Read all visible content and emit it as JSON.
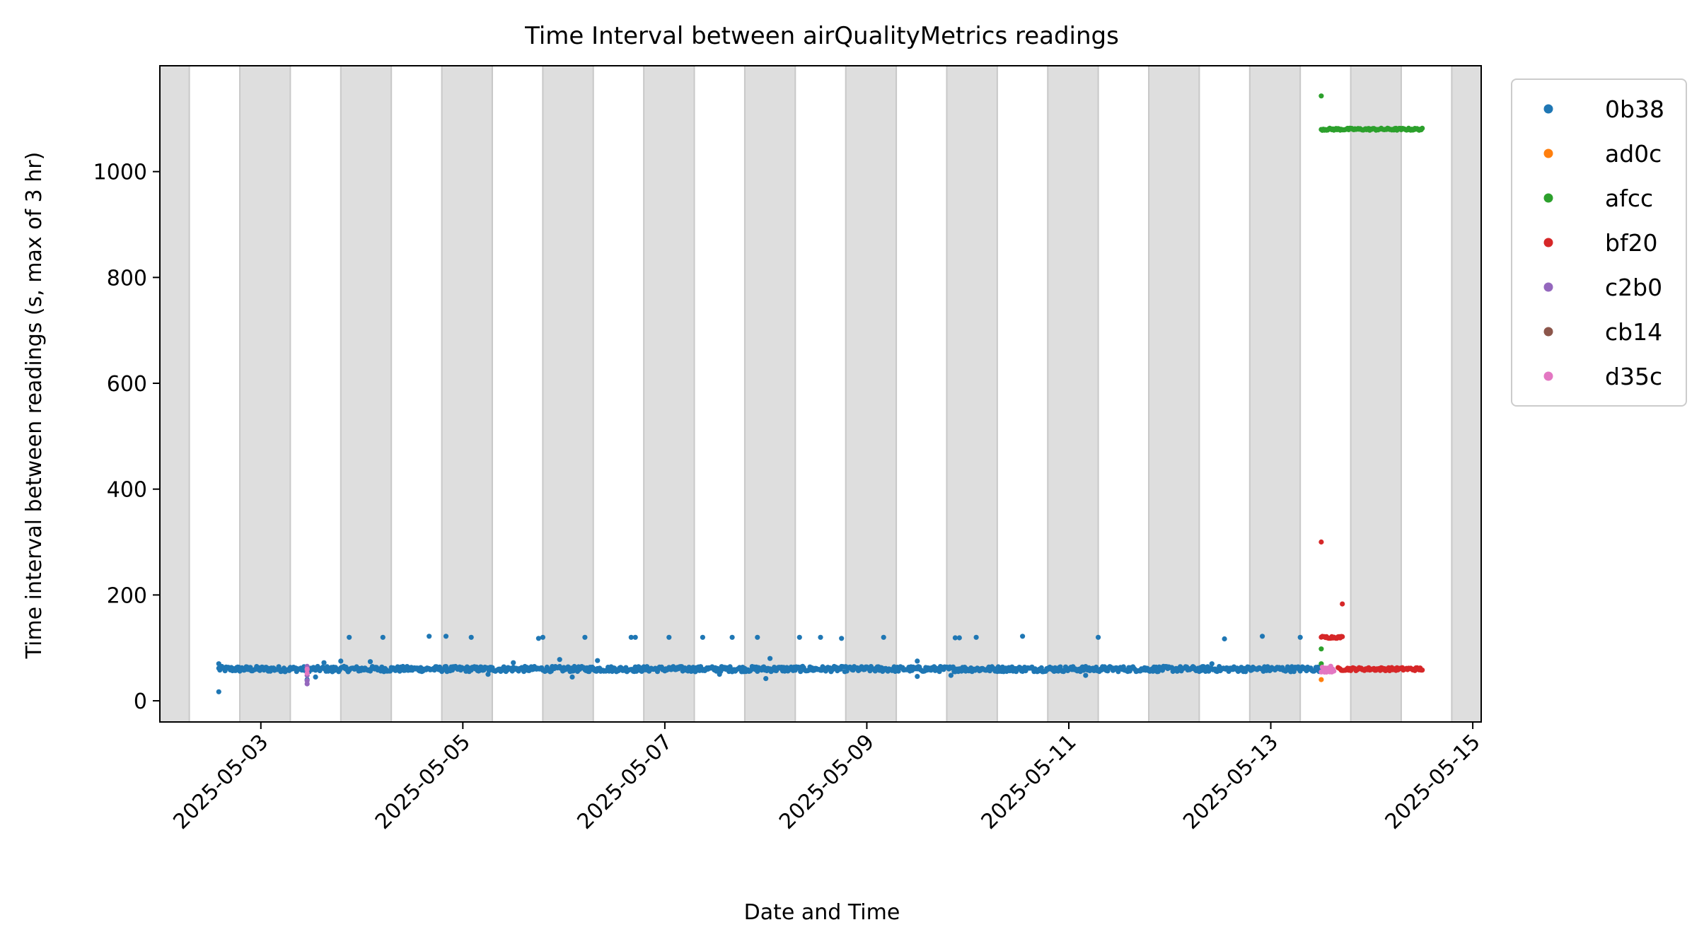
{
  "chart_data": {
    "type": "scatter",
    "title": "Time Interval between airQualityMetrics readings",
    "xlabel": "Date and Time",
    "ylabel": "Time interval between readings (s, max of 3 hr)",
    "x_axis_type": "datetime",
    "xlim": [
      "2025-05-02T00:00",
      "2025-05-15T02:00"
    ],
    "ylim": [
      -40,
      1200
    ],
    "x_ticks": [
      "2025-05-03",
      "2025-05-05",
      "2025-05-07",
      "2025-05-09",
      "2025-05-11",
      "2025-05-13",
      "2025-05-15"
    ],
    "y_ticks": [
      0,
      200,
      400,
      600,
      800,
      1000
    ],
    "background_bands": {
      "color": "#dedede",
      "description": "Shaded bands marking nighttime periods",
      "intervals": [
        [
          "2025-05-01T19:00",
          "2025-05-02T07:00"
        ],
        [
          "2025-05-02T19:00",
          "2025-05-03T07:00"
        ],
        [
          "2025-05-03T19:00",
          "2025-05-04T07:00"
        ],
        [
          "2025-05-04T19:00",
          "2025-05-05T07:00"
        ],
        [
          "2025-05-05T19:00",
          "2025-05-06T07:00"
        ],
        [
          "2025-05-06T19:00",
          "2025-05-07T07:00"
        ],
        [
          "2025-05-07T19:00",
          "2025-05-08T07:00"
        ],
        [
          "2025-05-08T19:00",
          "2025-05-09T07:00"
        ],
        [
          "2025-05-09T19:00",
          "2025-05-10T07:00"
        ],
        [
          "2025-05-10T19:00",
          "2025-05-11T07:00"
        ],
        [
          "2025-05-11T19:00",
          "2025-05-12T07:00"
        ],
        [
          "2025-05-12T19:00",
          "2025-05-13T07:00"
        ],
        [
          "2025-05-13T19:00",
          "2025-05-14T07:00"
        ],
        [
          "2025-05-14T19:00",
          "2025-05-15T07:00"
        ]
      ]
    },
    "grid": false,
    "legend_position": "outside-top-right",
    "series": [
      {
        "name": "0b38",
        "color": "#1f77b4",
        "baseline": {
          "start": "2025-05-02T14:00",
          "end": "2025-05-13T12:00",
          "value": 60,
          "jitter": 5
        },
        "points": [
          [
            "2025-05-02T14:00",
            17
          ],
          [
            "2025-05-02T14:00",
            70
          ],
          [
            "2025-05-03T11:00",
            40
          ],
          [
            "2025-05-03T13:00",
            45
          ],
          [
            "2025-05-03T17:00",
            55
          ],
          [
            "2025-05-03T15:00",
            72
          ],
          [
            "2025-05-03T19:00",
            75
          ],
          [
            "2025-05-04T02:00",
            74
          ],
          [
            "2025-05-03T21:00",
            120
          ],
          [
            "2025-05-04T05:00",
            120
          ],
          [
            "2025-05-04T16:00",
            122
          ],
          [
            "2025-05-04T20:00",
            122
          ],
          [
            "2025-05-05T02:00",
            120
          ],
          [
            "2025-05-05T06:00",
            50
          ],
          [
            "2025-05-05T12:00",
            72
          ],
          [
            "2025-05-05T18:00",
            118
          ],
          [
            "2025-05-05T19:00",
            120
          ],
          [
            "2025-05-06T05:00",
            120
          ],
          [
            "2025-05-06T16:00",
            120
          ],
          [
            "2025-05-06T17:00",
            120
          ],
          [
            "2025-05-06T02:00",
            45
          ],
          [
            "2025-05-06T08:00",
            76
          ],
          [
            "2025-05-05T23:00",
            78
          ],
          [
            "2025-05-07T01:00",
            120
          ],
          [
            "2025-05-07T09:00",
            120
          ],
          [
            "2025-05-07T16:00",
            120
          ],
          [
            "2025-05-07T22:00",
            120
          ],
          [
            "2025-05-07T13:00",
            50
          ],
          [
            "2025-05-08T00:00",
            42
          ],
          [
            "2025-05-08T01:00",
            80
          ],
          [
            "2025-05-08T08:00",
            120
          ],
          [
            "2025-05-08T13:00",
            120
          ],
          [
            "2025-05-08T18:00",
            118
          ],
          [
            "2025-05-09T04:00",
            120
          ],
          [
            "2025-05-09T12:00",
            46
          ],
          [
            "2025-05-09T12:00",
            75
          ],
          [
            "2025-05-09T20:00",
            48
          ],
          [
            "2025-05-09T21:00",
            119
          ],
          [
            "2025-05-09T22:00",
            119
          ],
          [
            "2025-05-10T02:00",
            120
          ],
          [
            "2025-05-10T13:00",
            122
          ],
          [
            "2025-05-11T07:00",
            120
          ],
          [
            "2025-05-12T13:00",
            117
          ],
          [
            "2025-05-12T22:00",
            122
          ],
          [
            "2025-05-13T07:00",
            120
          ],
          [
            "2025-05-11T04:00",
            48
          ],
          [
            "2025-05-12T10:00",
            70
          ]
        ]
      },
      {
        "name": "ad0c",
        "color": "#ff7f0e",
        "points": [
          [
            "2025-05-13T12:00",
            40
          ]
        ]
      },
      {
        "name": "afcc",
        "color": "#2ca02c",
        "baseline": {
          "start": "2025-05-13T12:00",
          "end": "2025-05-14T12:00",
          "value": 1080,
          "jitter": 2
        },
        "points": [
          [
            "2025-05-13T12:00",
            1143
          ],
          [
            "2025-05-13T12:00",
            98
          ],
          [
            "2025-05-13T12:00",
            70
          ]
        ]
      },
      {
        "name": "bf20",
        "color": "#d62728",
        "baseline": {
          "start": "2025-05-13T16:00",
          "end": "2025-05-14T12:00",
          "value": 60,
          "jitter": 3
        },
        "segments": [
          {
            "start": "2025-05-13T12:00",
            "end": "2025-05-13T17:00",
            "value": 120
          }
        ],
        "points": [
          [
            "2025-05-13T12:00",
            300
          ],
          [
            "2025-05-13T17:00",
            183
          ]
        ]
      },
      {
        "name": "c2b0",
        "color": "#9467bd",
        "points": [
          [
            "2025-05-03T11:00",
            58
          ],
          [
            "2025-05-03T11:00",
            48
          ],
          [
            "2025-05-03T11:00",
            38
          ],
          [
            "2025-05-03T11:00",
            32
          ],
          [
            "2025-05-03T11:00",
            65
          ]
        ]
      },
      {
        "name": "cb14",
        "color": "#8c564b",
        "points": []
      },
      {
        "name": "d35c",
        "color": "#e377c2",
        "baseline": {
          "start": "2025-05-13T12:00",
          "end": "2025-05-13T15:00",
          "value": 60,
          "jitter": 6
        },
        "points": [
          [
            "2025-05-03T11:00",
            60
          ],
          [
            "2025-05-03T11:00",
            52
          ]
        ]
      }
    ]
  }
}
